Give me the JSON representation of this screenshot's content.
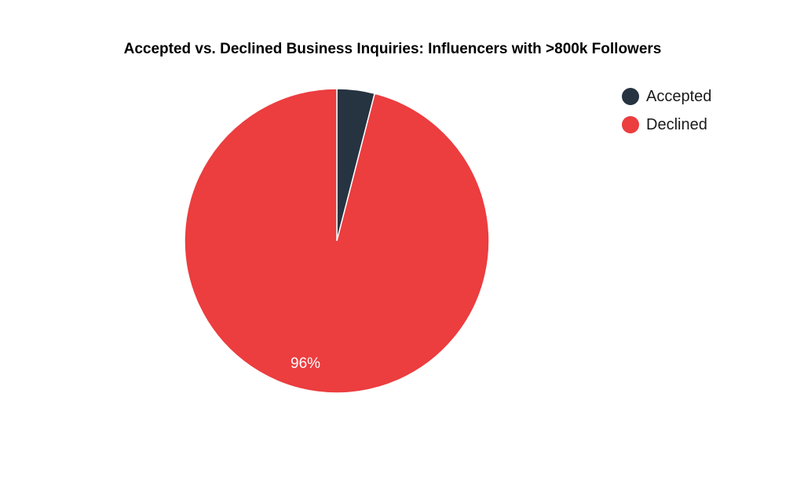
{
  "chart_data": {
    "type": "pie",
    "title": "Accepted vs. Declined Business Inquiries: Influencers with >800k Followers",
    "categories": [
      "Accepted",
      "Declined"
    ],
    "values": [
      4,
      96
    ],
    "data_labels": [
      "",
      "96%"
    ],
    "colors": [
      "#263341",
      "#ec3d3f"
    ],
    "start_angle": "12 o'clock",
    "direction": "clockwise",
    "legend_position": "top-right"
  }
}
